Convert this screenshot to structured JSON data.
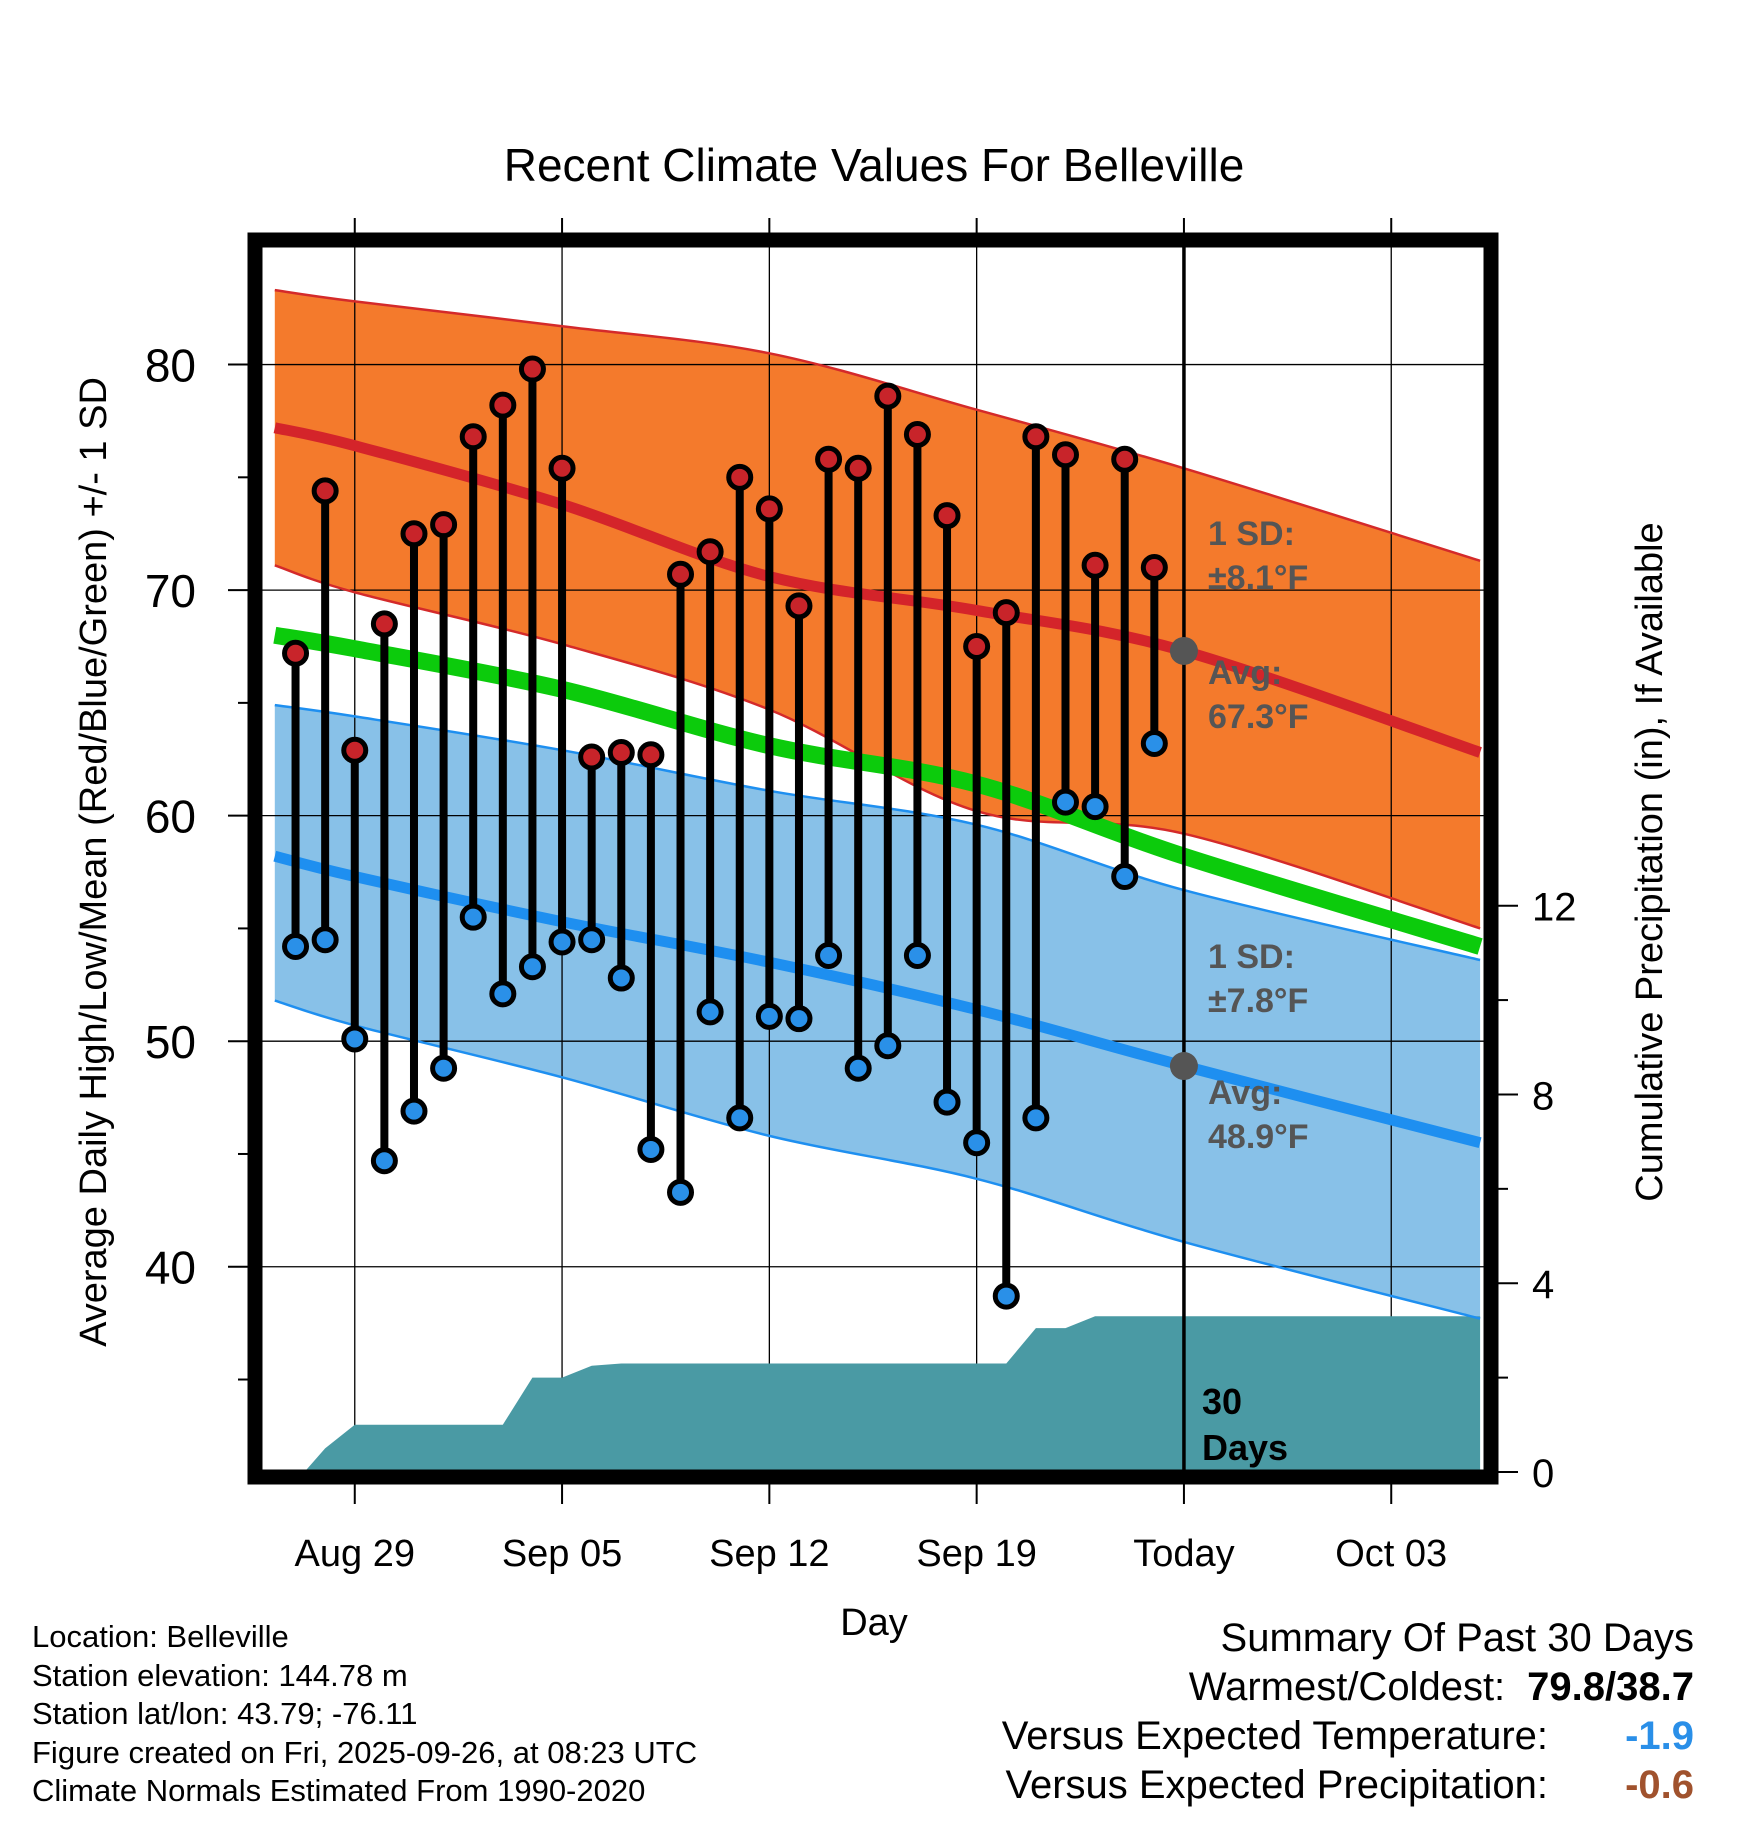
{
  "chart_data": {
    "type": "line",
    "title": "Recent Climate Values For Belleville",
    "xlabel": "Day",
    "ylabel": "Average Daily High/Low/Mean (Red/Blue/Green) +/- 1 SD",
    "y2label": "Cumulative Precipitation (in), If Available",
    "xlim": [
      -3.2,
      38.2
    ],
    "ylim": [
      30.9,
      85.3
    ],
    "y2lim": [
      0,
      26.0
    ],
    "x_ticks": [
      {
        "x": 0,
        "label": "Aug 29"
      },
      {
        "x": 7,
        "label": "Sep 05"
      },
      {
        "x": 14,
        "label": "Sep 12"
      },
      {
        "x": 21,
        "label": "Sep 19"
      },
      {
        "x": 28,
        "label": "Today"
      },
      {
        "x": 35,
        "label": "Oct 03"
      }
    ],
    "y_ticks": [
      40,
      50,
      60,
      70,
      80
    ],
    "y2_ticks": [
      0,
      4,
      8,
      12
    ],
    "days": [
      -2,
      -1,
      0,
      1,
      2,
      3,
      4,
      5,
      6,
      7,
      8,
      9,
      10,
      11,
      12,
      13,
      14,
      15,
      16,
      17,
      18,
      19,
      20,
      21,
      22,
      23,
      24,
      25,
      26,
      27
    ],
    "highs": [
      67.2,
      74.4,
      62.9,
      68.5,
      72.5,
      72.9,
      76.8,
      78.2,
      79.8,
      75.4,
      62.6,
      62.8,
      62.7,
      70.7,
      71.7,
      75.0,
      73.6,
      69.3,
      75.8,
      75.4,
      78.6,
      76.9,
      73.3,
      67.5,
      69.0,
      76.8,
      76.0,
      71.1,
      75.8,
      71.0
    ],
    "lows": [
      54.2,
      54.5,
      50.1,
      44.7,
      46.9,
      48.8,
      55.5,
      52.1,
      53.3,
      54.4,
      54.5,
      52.8,
      45.2,
      43.3,
      51.3,
      46.6,
      51.1,
      51.0,
      53.8,
      48.8,
      49.8,
      53.8,
      47.3,
      45.5,
      38.7,
      46.6,
      60.6,
      60.4,
      57.3,
      63.2
    ],
    "normals": {
      "x": [
        -2.7,
        0,
        7,
        14,
        21,
        28,
        38
      ],
      "high_avg": [
        77.2,
        76.4,
        73.8,
        70.6,
        69.1,
        67.3,
        62.8
      ],
      "high_upper": [
        83.3,
        82.8,
        81.7,
        80.5,
        78.0,
        75.4,
        71.3
      ],
      "high_lower": [
        71.1,
        69.9,
        67.6,
        64.7,
        60.2,
        59.2,
        55.0
      ],
      "mean_avg": [
        68.0,
        67.4,
        65.6,
        63.1,
        61.4,
        58.2,
        54.2
      ],
      "low_avg": [
        58.2,
        57.3,
        55.3,
        53.5,
        51.4,
        48.9,
        45.5
      ],
      "low_upper": [
        64.9,
        64.4,
        62.9,
        61.1,
        59.6,
        56.7,
        53.6
      ],
      "low_lower": [
        51.8,
        50.7,
        48.4,
        45.8,
        43.9,
        41.1,
        37.7
      ]
    },
    "precip": {
      "x": [
        -1.7,
        -1,
        0,
        5,
        6,
        7,
        8,
        9,
        22,
        23,
        24,
        25,
        26,
        27,
        28,
        38
      ],
      "values": [
        0,
        0.5,
        1.0,
        1.0,
        2.0,
        2.0,
        2.25,
        2.3,
        2.3,
        3.05,
        3.05,
        3.3,
        3.3,
        3.3,
        3.3,
        3.3
      ]
    },
    "annotations": {
      "high": {
        "sd_label": "1 SD:",
        "sd_value": "±8.1°F",
        "avg_label": "Avg:",
        "avg_value": "67.3°F",
        "avg_point": 67.3
      },
      "low": {
        "sd_label": "1 SD:",
        "sd_value": "±7.8°F",
        "avg_label": "Avg:",
        "avg_value": "48.9°F",
        "avg_point": 48.9
      },
      "days_label": [
        "30",
        "Days"
      ]
    },
    "colors": {
      "high_band": "#f47a2c",
      "high_line": "#d4242a",
      "high_edge": "#d42a2a",
      "low_band": "#88c1e8",
      "low_line": "#1e8ff0",
      "mean_line": "#0ccb0c",
      "precip": "#4a9aa4",
      "annotation": "#555555",
      "high_dot": "#c8242a",
      "low_dot": "#2a90e8",
      "avg_dot": "#555555"
    }
  },
  "info": {
    "location": "Location: Belleville",
    "elevation": "Station elevation: 144.78 m",
    "latlon": "Station lat/lon: 43.79; -76.11",
    "created": "Figure created on Fri, 2025-09-26, at 08:23 UTC",
    "normals": "Climate Normals Estimated From 1990-2020"
  },
  "summary": {
    "title": "Summary Of Past 30 Days",
    "warmest_label": "Warmest/Coldest:",
    "warmest_value": "79.8/38.7",
    "temp_label": "Versus Expected Temperature:",
    "temp_value": "-1.9",
    "temp_color": "#2a8fe8",
    "precip_label": "Versus Expected Precipitation:",
    "precip_value": "-0.6",
    "precip_color": "#a0522d"
  }
}
